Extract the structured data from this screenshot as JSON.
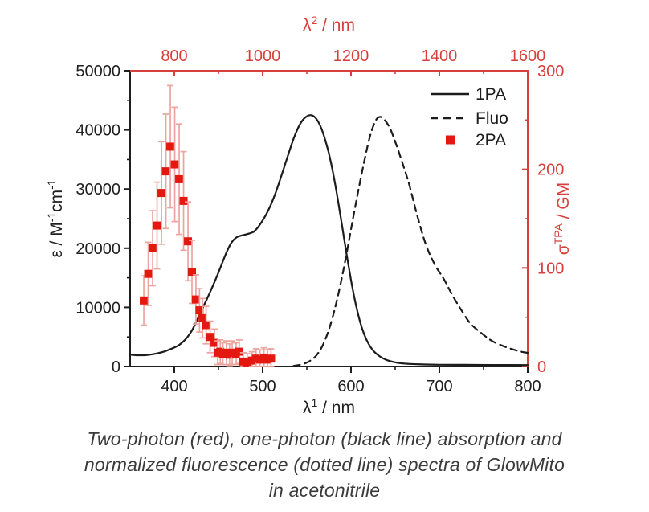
{
  "caption": {
    "lines": [
      "Two-photon (red), one-photon (black line) absorption and",
      "normalized fluorescence (dotted line) spectra of GlowMito",
      "in acetonitrile"
    ]
  },
  "colors": {
    "axis_black": "#1f1f1f",
    "axis_red": "#d6403a",
    "curve_black": "#1c1c1c",
    "data_red": "#e41811",
    "errorbar_red": "#eda49f",
    "caption_text": "#3b3b3b",
    "background": "#ffffff"
  },
  "chart_data": {
    "type": "line",
    "title": "",
    "grid": false,
    "legend": {
      "position": "top-right",
      "items": [
        {
          "label": "1PA",
          "marker": "solid-line"
        },
        {
          "label": "Fluo",
          "marker": "dashed-line"
        },
        {
          "label": "2PA",
          "marker": "red-square"
        }
      ]
    },
    "axes": {
      "bottom": {
        "label": "λ¹ / nm",
        "label_rich": [
          [
            "λ",
            "n"
          ],
          [
            "1",
            "s"
          ],
          [
            " / nm",
            "n"
          ]
        ],
        "range": [
          350,
          800
        ],
        "major_ticks": [
          400,
          500,
          600,
          700,
          800
        ],
        "minor_ticks": [
          450,
          550,
          650,
          750
        ],
        "color_key": "axis_black"
      },
      "top": {
        "label": "λ² / nm",
        "label_rich": [
          [
            "λ",
            "n"
          ],
          [
            "2",
            "s"
          ],
          [
            " / nm",
            "n"
          ]
        ],
        "range": [
          700,
          1600
        ],
        "major_ticks": [
          800,
          1000,
          1200,
          1400,
          1600
        ],
        "minor_ticks": [
          900,
          1100,
          1300,
          1500
        ],
        "color_key": "axis_red"
      },
      "left": {
        "label": "ε / M⁻¹cm⁻¹",
        "label_rich": [
          [
            "ε / M",
            "n"
          ],
          [
            "-1",
            "s"
          ],
          [
            "cm",
            "n"
          ],
          [
            "-1",
            "s"
          ]
        ],
        "range": [
          0,
          50000
        ],
        "major_ticks": [
          0,
          10000,
          20000,
          30000,
          40000,
          50000
        ],
        "minor_ticks": [
          5000,
          15000,
          25000,
          35000,
          45000
        ],
        "color_key": "axis_black"
      },
      "right": {
        "label": "σᵀᴾᴬ / GM",
        "label_rich": [
          [
            "σ",
            "n"
          ],
          [
            "TPA",
            "s"
          ],
          [
            " / GM",
            "n"
          ]
        ],
        "range": [
          0,
          300
        ],
        "major_ticks": [
          0,
          100,
          200,
          300
        ],
        "minor_ticks": [
          50,
          150,
          250
        ],
        "color_key": "axis_red"
      }
    },
    "series": [
      {
        "name": "1PA",
        "x_axis": "bottom",
        "y_axis": "left",
        "style": "solid",
        "x": [
          350,
          357,
          365,
          372,
          380,
          388,
          395,
          400,
          405,
          410,
          415,
          420,
          425,
          430,
          435,
          440,
          445,
          450,
          455,
          460,
          465,
          470,
          475,
          480,
          485,
          490,
          495,
          500,
          505,
          510,
          515,
          520,
          525,
          530,
          535,
          540,
          545,
          550,
          554,
          558,
          562,
          566,
          570,
          575,
          580,
          585,
          590,
          595,
          600,
          605,
          610,
          615,
          620,
          625,
          630,
          636,
          642,
          650,
          660,
          675,
          700,
          730,
          760,
          800
        ],
        "y": [
          2000,
          1900,
          1900,
          2000,
          2200,
          2500,
          2900,
          3200,
          3600,
          4200,
          5000,
          6100,
          7600,
          9200,
          10800,
          12400,
          14100,
          15900,
          17800,
          19600,
          21000,
          21800,
          22100,
          22300,
          22500,
          22800,
          23600,
          24700,
          26000,
          27600,
          29500,
          31700,
          34000,
          36300,
          38500,
          40300,
          41600,
          42300,
          42500,
          42300,
          41600,
          40400,
          38700,
          36000,
          32500,
          28300,
          23700,
          19000,
          14600,
          10800,
          7700,
          5400,
          3800,
          2700,
          2000,
          1400,
          1000,
          700,
          500,
          380,
          300,
          280,
          260,
          250
        ]
      },
      {
        "name": "Fluo",
        "x_axis": "bottom",
        "y_axis": "left",
        "style": "dashed",
        "x": [
          535,
          545,
          553,
          561,
          569,
          577,
          585,
          593,
          601,
          609,
          616,
          622,
          628,
          633,
          638,
          644,
          650,
          658,
          666,
          675,
          685,
          695,
          705,
          715,
          725,
          735,
          748,
          760,
          775,
          790,
          800
        ],
        "y": [
          100,
          400,
          900,
          1900,
          3900,
          7200,
          11800,
          17500,
          24000,
          30300,
          35400,
          39200,
          41600,
          42200,
          41700,
          40300,
          38000,
          34500,
          30700,
          25500,
          20500,
          17200,
          14800,
          12000,
          9500,
          7300,
          5600,
          4300,
          3300,
          2600,
          2300
        ]
      },
      {
        "name": "2PA",
        "x_axis": "top",
        "y_axis": "right",
        "style": "scatter-errorbar",
        "x": [
          731,
          741,
          751,
          761,
          771,
          781,
          791,
          801,
          811,
          821,
          831,
          840,
          849,
          857,
          864,
          872,
          881,
          891,
          898,
          904,
          910,
          918,
          925,
          931,
          940,
          947,
          956,
          965,
          976,
          985,
          994,
          1003,
          1011,
          1019
        ],
        "y": [
          67,
          94,
          120,
          143,
          176,
          198,
          223,
          205,
          190,
          168,
          127,
          96,
          68,
          57,
          49,
          42,
          30,
          24,
          14,
          15,
          13,
          14,
          12,
          14,
          13,
          15,
          5,
          4,
          6,
          8,
          7,
          9,
          7,
          8
        ],
        "yerr": [
          25,
          32,
          38,
          44,
          52,
          58,
          62,
          58,
          56,
          50,
          40,
          32,
          25,
          22,
          20,
          19,
          16,
          14,
          12,
          12,
          11,
          12,
          11,
          12,
          11,
          12,
          9,
          9,
          9,
          10,
          10,
          10,
          10,
          10
        ]
      }
    ]
  }
}
